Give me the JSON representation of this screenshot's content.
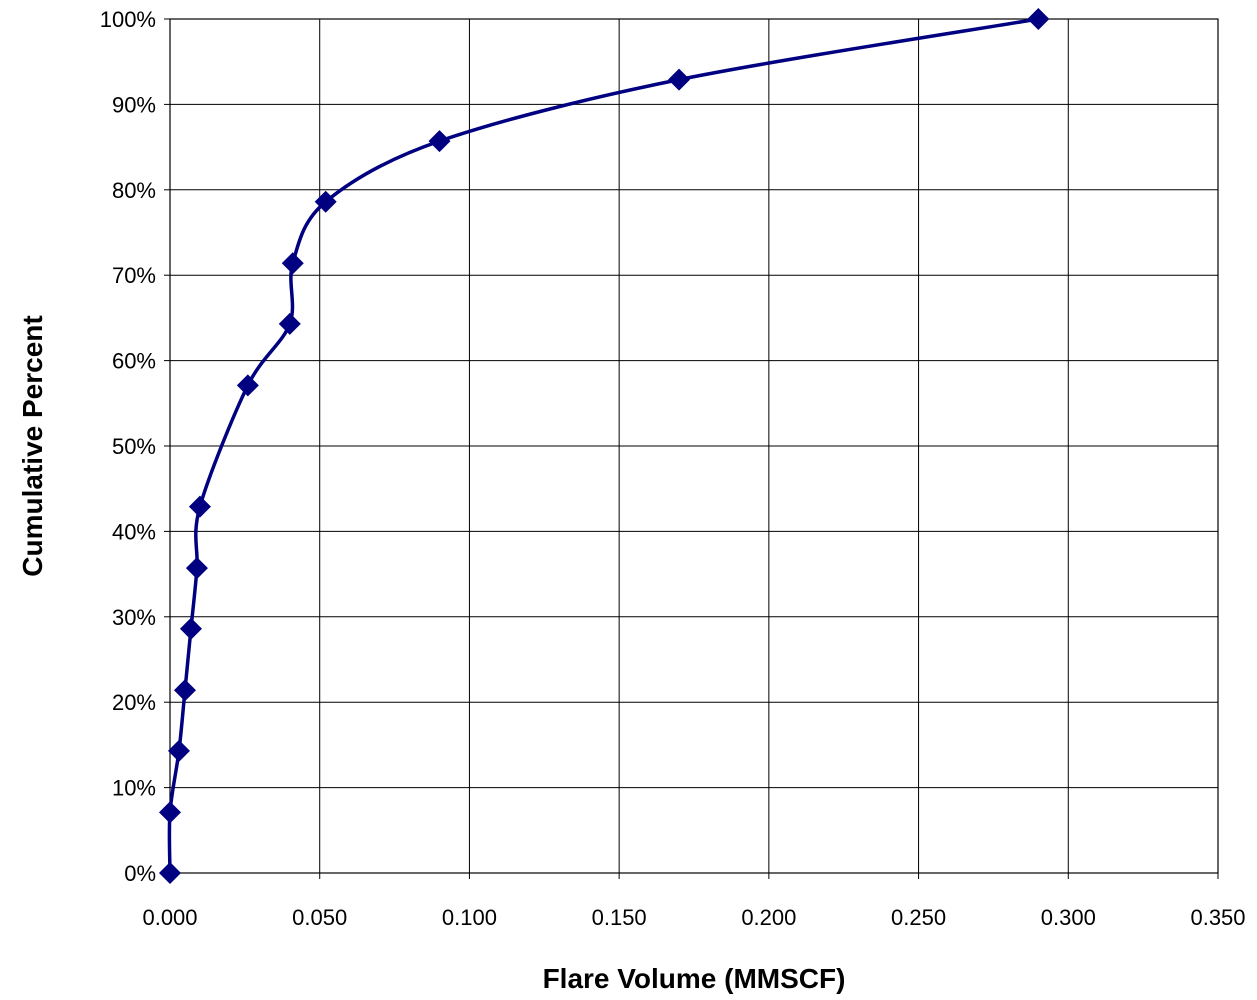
{
  "chart_data": {
    "type": "line",
    "xlabel": "Flare Volume (MMSCF)",
    "ylabel": "Cumulative Percent",
    "xlim": [
      0,
      0.35
    ],
    "ylim": [
      0,
      100
    ],
    "x_ticks": [
      0,
      0.05,
      0.1,
      0.15,
      0.2,
      0.25,
      0.3,
      0.35
    ],
    "x_tick_labels": [
      "0.000",
      "0.050",
      "0.100",
      "0.150",
      "0.200",
      "0.250",
      "0.300",
      "0.350"
    ],
    "y_ticks": [
      0,
      10,
      20,
      30,
      40,
      50,
      60,
      70,
      80,
      90,
      100
    ],
    "y_tick_labels": [
      "0%",
      "10%",
      "20%",
      "30%",
      "40%",
      "50%",
      "60%",
      "70%",
      "80%",
      "90%",
      "100%"
    ],
    "grid": true,
    "legend": "none",
    "line_color": "#000080",
    "series": [
      {
        "x": [
          0.0,
          0.0,
          0.003,
          0.005,
          0.007,
          0.009,
          0.01,
          0.026,
          0.04,
          0.041,
          0.052,
          0.09,
          0.17,
          0.29
        ],
        "y": [
          0.0,
          7.1,
          14.3,
          21.4,
          28.6,
          35.7,
          42.9,
          57.1,
          64.3,
          71.4,
          78.6,
          85.7,
          92.9,
          100.0
        ]
      }
    ]
  }
}
